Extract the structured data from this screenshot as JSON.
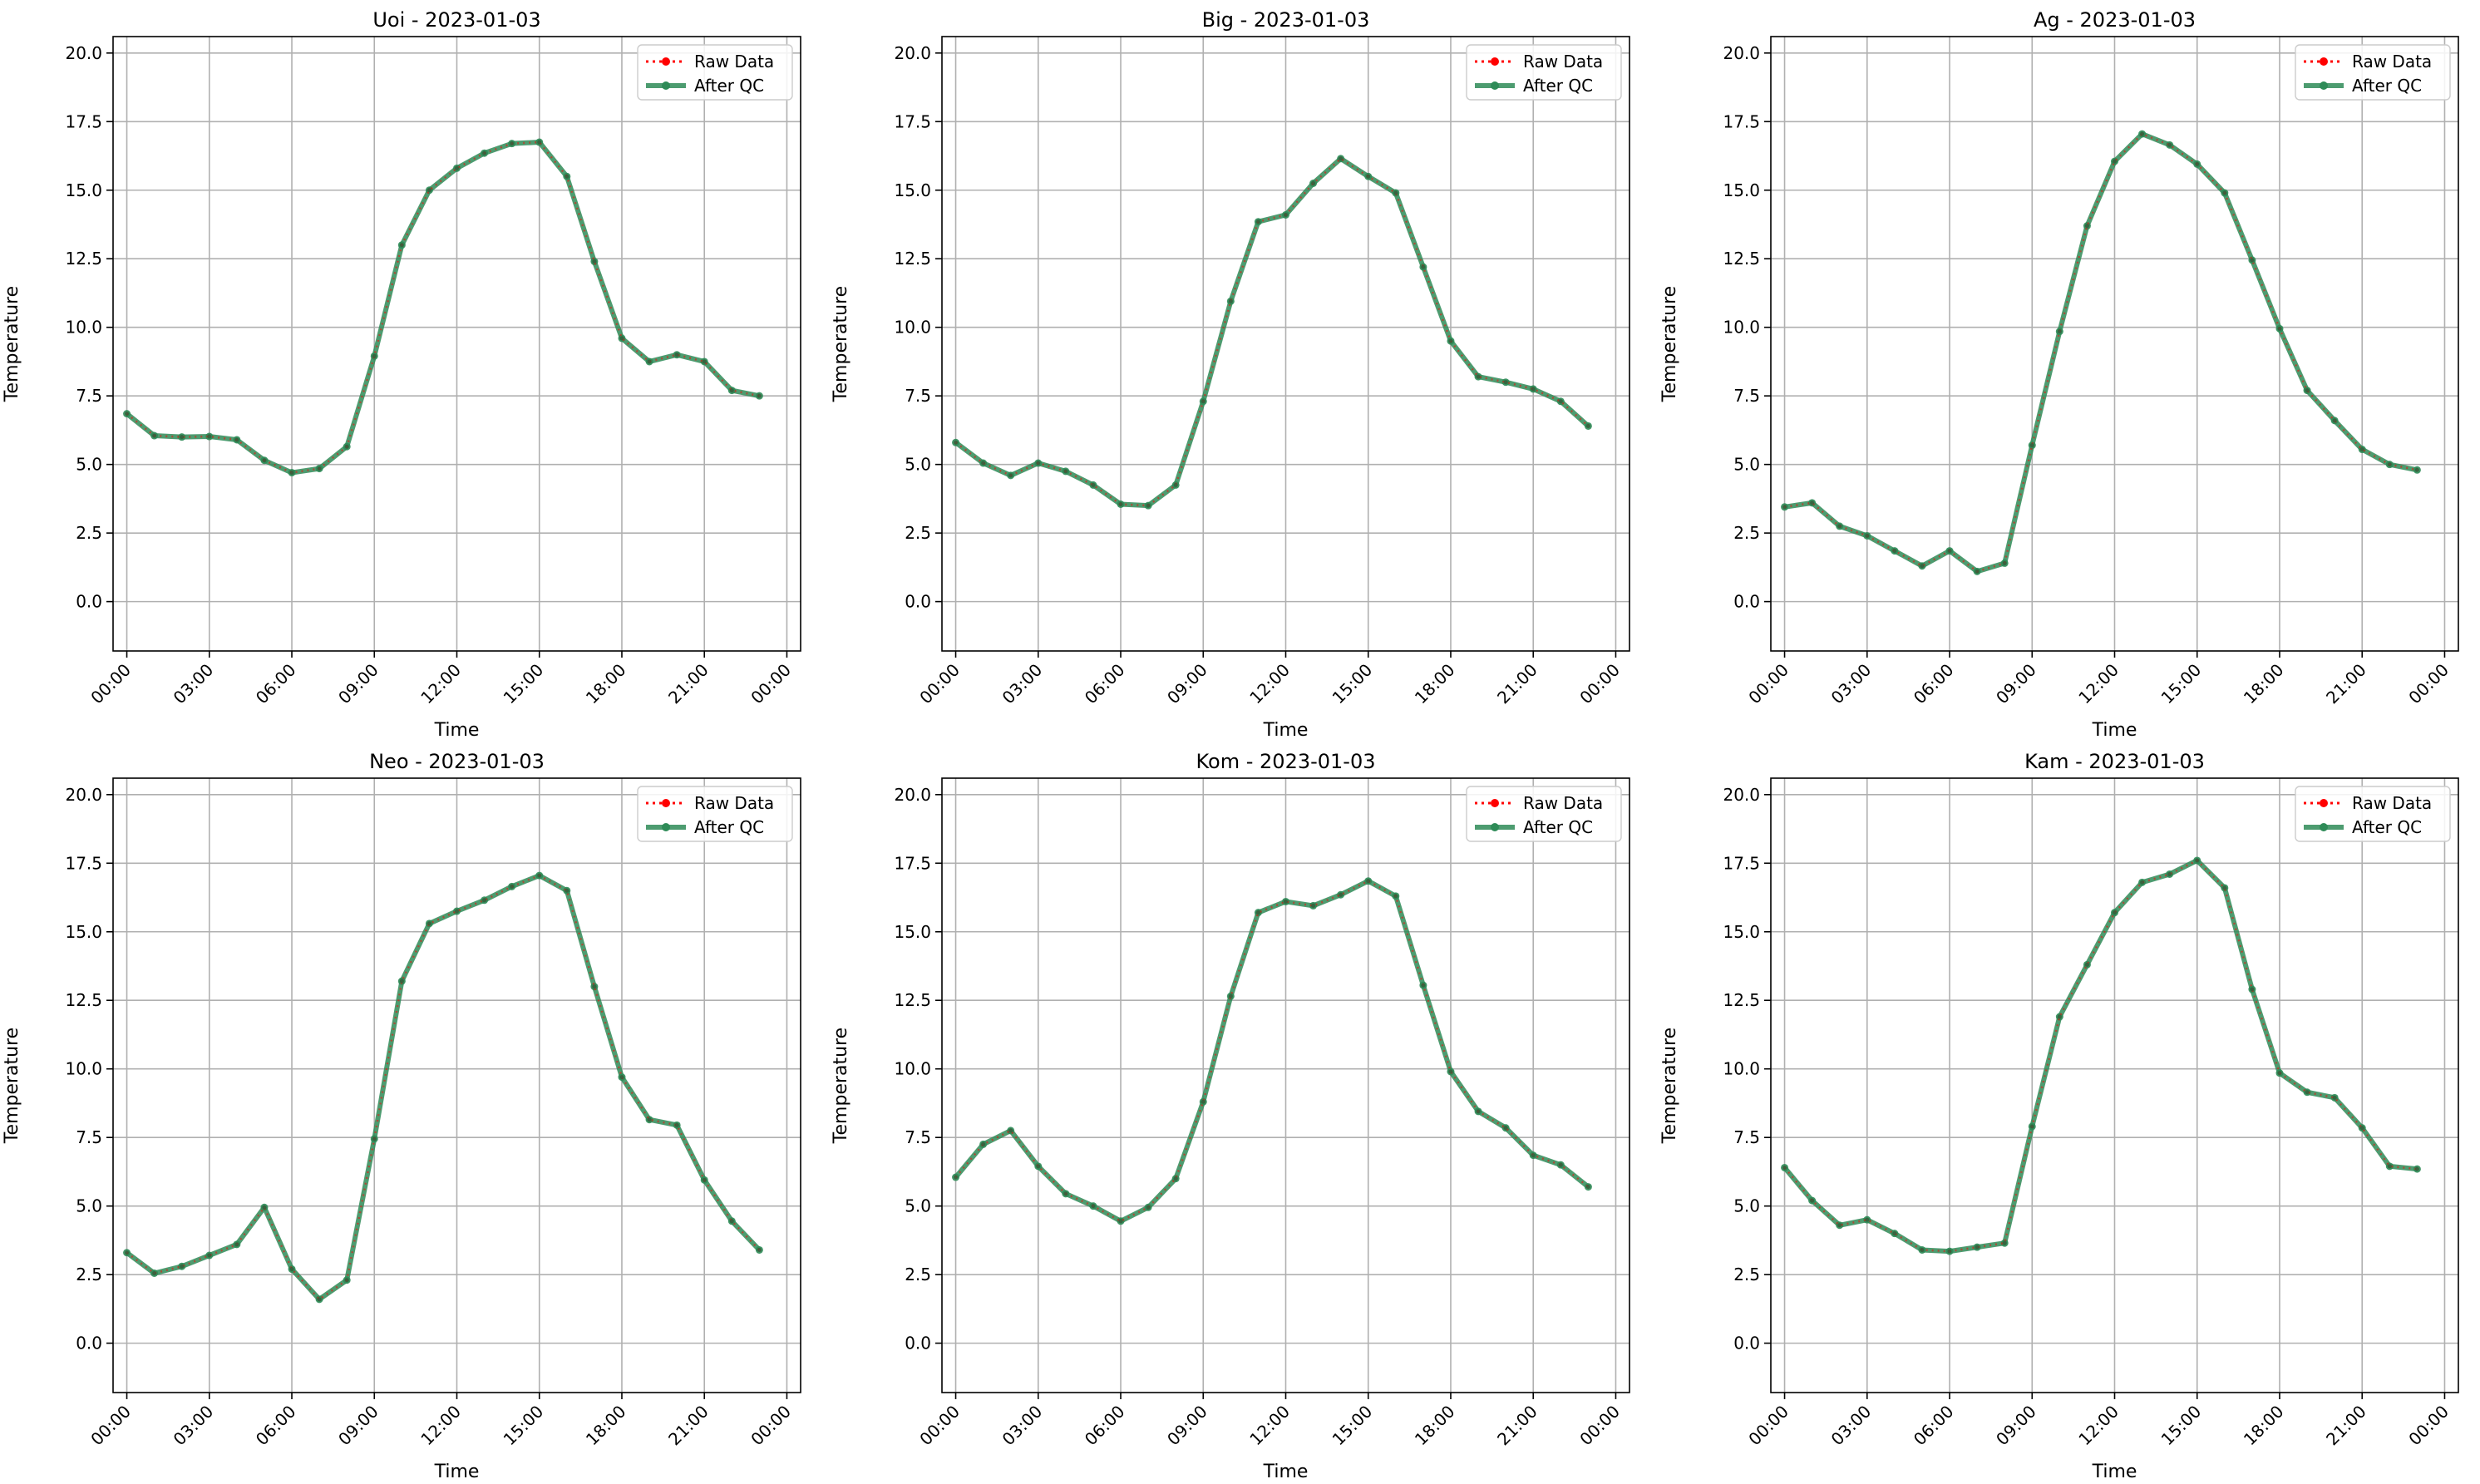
{
  "colors": {
    "raw": "#ff0000",
    "qc": "#2e8b57",
    "grid": "#b0b0b0"
  },
  "legend": {
    "raw_label": "Raw Data",
    "qc_label": "After QC",
    "position": "top-right"
  },
  "chart_data": [
    {
      "type": "line",
      "title": "Uoi - 2023-01-03",
      "xlabel": "Time",
      "ylabel": "Temperature",
      "xticks": [
        "00:00",
        "03:00",
        "06:00",
        "09:00",
        "12:00",
        "15:00",
        "18:00",
        "21:00",
        "00:00"
      ],
      "yticks": [
        "0.0",
        "2.5",
        "5.0",
        "7.5",
        "10.0",
        "12.5",
        "15.0",
        "17.5",
        "20.0"
      ],
      "ylim": [
        -1.8,
        20.6
      ],
      "xlim": [
        "2023-01-03 00:00",
        "2023-01-04 00:00"
      ],
      "grid": true,
      "x": [
        "00:00",
        "01:00",
        "02:00",
        "03:00",
        "04:00",
        "05:00",
        "06:00",
        "07:00",
        "08:00",
        "09:00",
        "10:00",
        "11:00",
        "12:00",
        "13:00",
        "14:00",
        "15:00",
        "16:00",
        "17:00",
        "18:00",
        "19:00",
        "20:00",
        "21:00",
        "22:00",
        "23:00"
      ],
      "series": [
        {
          "name": "Raw Data",
          "values": [
            6.85,
            6.05,
            6.0,
            6.02,
            5.9,
            5.15,
            4.7,
            4.85,
            5.65,
            8.95,
            13.0,
            15.0,
            15.8,
            16.35,
            16.7,
            16.75,
            15.5,
            12.4,
            9.6,
            8.75,
            9.0,
            8.75,
            7.7,
            7.5
          ]
        },
        {
          "name": "After QC",
          "values": [
            6.85,
            6.05,
            6.0,
            6.02,
            5.9,
            5.15,
            4.7,
            4.85,
            5.65,
            8.95,
            13.0,
            15.0,
            15.8,
            16.35,
            16.7,
            16.75,
            15.5,
            12.4,
            9.6,
            8.75,
            9.0,
            8.75,
            7.7,
            7.5
          ]
        }
      ]
    },
    {
      "type": "line",
      "title": "Big - 2023-01-03",
      "xlabel": "Time",
      "ylabel": "Temperature",
      "xticks": [
        "00:00",
        "03:00",
        "06:00",
        "09:00",
        "12:00",
        "15:00",
        "18:00",
        "21:00",
        "00:00"
      ],
      "yticks": [
        "0.0",
        "2.5",
        "5.0",
        "7.5",
        "10.0",
        "12.5",
        "15.0",
        "17.5",
        "20.0"
      ],
      "ylim": [
        -1.8,
        20.6
      ],
      "xlim": [
        "2023-01-03 00:00",
        "2023-01-04 00:00"
      ],
      "grid": true,
      "x": [
        "00:00",
        "01:00",
        "02:00",
        "03:00",
        "04:00",
        "05:00",
        "06:00",
        "07:00",
        "08:00",
        "09:00",
        "10:00",
        "11:00",
        "12:00",
        "13:00",
        "14:00",
        "15:00",
        "16:00",
        "17:00",
        "18:00",
        "19:00",
        "20:00",
        "21:00",
        "22:00",
        "23:00"
      ],
      "series": [
        {
          "name": "Raw Data",
          "values": [
            5.8,
            5.05,
            4.6,
            5.05,
            4.75,
            4.25,
            3.55,
            3.5,
            4.25,
            7.3,
            10.95,
            13.85,
            14.1,
            15.25,
            16.15,
            15.5,
            14.9,
            12.2,
            9.5,
            8.2,
            8.0,
            7.75,
            7.3,
            6.4
          ]
        },
        {
          "name": "After QC",
          "values": [
            5.8,
            5.05,
            4.6,
            5.05,
            4.75,
            4.25,
            3.55,
            3.5,
            4.25,
            7.3,
            10.95,
            13.85,
            14.1,
            15.25,
            16.15,
            15.5,
            14.9,
            12.2,
            9.5,
            8.2,
            8.0,
            7.75,
            7.3,
            6.4
          ]
        }
      ]
    },
    {
      "type": "line",
      "title": "Ag - 2023-01-03",
      "xlabel": "Time",
      "ylabel": "Temperature",
      "xticks": [
        "00:00",
        "03:00",
        "06:00",
        "09:00",
        "12:00",
        "15:00",
        "18:00",
        "21:00",
        "00:00"
      ],
      "yticks": [
        "0.0",
        "2.5",
        "5.0",
        "7.5",
        "10.0",
        "12.5",
        "15.0",
        "17.5",
        "20.0"
      ],
      "ylim": [
        -1.8,
        20.6
      ],
      "xlim": [
        "2023-01-03 00:00",
        "2023-01-04 00:00"
      ],
      "grid": true,
      "x": [
        "00:00",
        "01:00",
        "02:00",
        "03:00",
        "04:00",
        "05:00",
        "06:00",
        "07:00",
        "08:00",
        "09:00",
        "10:00",
        "11:00",
        "12:00",
        "13:00",
        "14:00",
        "15:00",
        "16:00",
        "17:00",
        "18:00",
        "19:00",
        "20:00",
        "21:00",
        "22:00",
        "23:00"
      ],
      "series": [
        {
          "name": "Raw Data",
          "values": [
            3.45,
            3.6,
            2.75,
            2.4,
            1.85,
            1.3,
            1.85,
            1.1,
            1.4,
            5.7,
            9.85,
            13.7,
            16.05,
            17.05,
            16.65,
            15.95,
            14.9,
            12.45,
            9.95,
            7.7,
            6.6,
            5.55,
            5.0,
            4.8
          ]
        },
        {
          "name": "After QC",
          "values": [
            3.45,
            3.6,
            2.75,
            2.4,
            1.85,
            1.3,
            1.85,
            1.1,
            1.4,
            5.7,
            9.85,
            13.7,
            16.05,
            17.05,
            16.65,
            15.95,
            14.9,
            12.45,
            9.95,
            7.7,
            6.6,
            5.55,
            5.0,
            4.8
          ]
        }
      ]
    },
    {
      "type": "line",
      "title": "Neo - 2023-01-03",
      "xlabel": "Time",
      "ylabel": "Temperature",
      "xticks": [
        "00:00",
        "03:00",
        "06:00",
        "09:00",
        "12:00",
        "15:00",
        "18:00",
        "21:00",
        "00:00"
      ],
      "yticks": [
        "0.0",
        "2.5",
        "5.0",
        "7.5",
        "10.0",
        "12.5",
        "15.0",
        "17.5",
        "20.0"
      ],
      "ylim": [
        -1.8,
        20.6
      ],
      "xlim": [
        "2023-01-03 00:00",
        "2023-01-04 00:00"
      ],
      "grid": true,
      "x": [
        "00:00",
        "01:00",
        "02:00",
        "03:00",
        "04:00",
        "05:00",
        "06:00",
        "07:00",
        "08:00",
        "09:00",
        "10:00",
        "11:00",
        "12:00",
        "13:00",
        "14:00",
        "15:00",
        "16:00",
        "17:00",
        "18:00",
        "19:00",
        "20:00",
        "21:00",
        "22:00",
        "23:00"
      ],
      "series": [
        {
          "name": "Raw Data",
          "values": [
            3.3,
            2.55,
            2.8,
            3.2,
            3.6,
            4.95,
            2.7,
            1.6,
            2.3,
            7.45,
            13.2,
            15.3,
            15.75,
            16.15,
            16.65,
            17.05,
            16.5,
            13.0,
            9.7,
            8.15,
            7.95,
            5.95,
            4.45,
            3.4
          ]
        },
        {
          "name": "After QC",
          "values": [
            3.3,
            2.55,
            2.8,
            3.2,
            3.6,
            4.95,
            2.7,
            1.6,
            2.3,
            7.45,
            13.2,
            15.3,
            15.75,
            16.15,
            16.65,
            17.05,
            16.5,
            13.0,
            9.7,
            8.15,
            7.95,
            5.95,
            4.45,
            3.4
          ]
        }
      ]
    },
    {
      "type": "line",
      "title": "Kom - 2023-01-03",
      "xlabel": "Time",
      "ylabel": "Temperature",
      "xticks": [
        "00:00",
        "03:00",
        "06:00",
        "09:00",
        "12:00",
        "15:00",
        "18:00",
        "21:00",
        "00:00"
      ],
      "yticks": [
        "0.0",
        "2.5",
        "5.0",
        "7.5",
        "10.0",
        "12.5",
        "15.0",
        "17.5",
        "20.0"
      ],
      "ylim": [
        -1.8,
        20.6
      ],
      "xlim": [
        "2023-01-03 00:00",
        "2023-01-04 00:00"
      ],
      "grid": true,
      "x": [
        "00:00",
        "01:00",
        "02:00",
        "03:00",
        "04:00",
        "05:00",
        "06:00",
        "07:00",
        "08:00",
        "09:00",
        "10:00",
        "11:00",
        "12:00",
        "13:00",
        "14:00",
        "15:00",
        "16:00",
        "17:00",
        "18:00",
        "19:00",
        "20:00",
        "21:00",
        "22:00",
        "23:00"
      ],
      "series": [
        {
          "name": "Raw Data",
          "values": [
            6.05,
            7.25,
            7.75,
            6.45,
            5.45,
            5.0,
            4.45,
            4.95,
            6.0,
            8.8,
            12.65,
            15.7,
            16.1,
            15.95,
            16.35,
            16.85,
            16.3,
            13.05,
            9.9,
            8.45,
            7.85,
            6.85,
            6.5,
            5.7
          ]
        },
        {
          "name": "After QC",
          "values": [
            6.05,
            7.25,
            7.75,
            6.45,
            5.45,
            5.0,
            4.45,
            4.95,
            6.0,
            8.8,
            12.65,
            15.7,
            16.1,
            15.95,
            16.35,
            16.85,
            16.3,
            13.05,
            9.9,
            8.45,
            7.85,
            6.85,
            6.5,
            5.7
          ]
        }
      ]
    },
    {
      "type": "line",
      "title": "Kam - 2023-01-03",
      "xlabel": "Time",
      "ylabel": "Temperature",
      "xticks": [
        "00:00",
        "03:00",
        "06:00",
        "09:00",
        "12:00",
        "15:00",
        "18:00",
        "21:00",
        "00:00"
      ],
      "yticks": [
        "0.0",
        "2.5",
        "5.0",
        "7.5",
        "10.0",
        "12.5",
        "15.0",
        "17.5",
        "20.0"
      ],
      "ylim": [
        -1.8,
        20.6
      ],
      "xlim": [
        "2023-01-03 00:00",
        "2023-01-04 00:00"
      ],
      "grid": true,
      "x": [
        "00:00",
        "01:00",
        "02:00",
        "03:00",
        "04:00",
        "05:00",
        "06:00",
        "07:00",
        "08:00",
        "09:00",
        "10:00",
        "11:00",
        "12:00",
        "13:00",
        "14:00",
        "15:00",
        "16:00",
        "17:00",
        "18:00",
        "19:00",
        "20:00",
        "21:00",
        "22:00",
        "23:00"
      ],
      "series": [
        {
          "name": "Raw Data",
          "values": [
            6.4,
            5.2,
            4.3,
            4.5,
            4.0,
            3.4,
            3.35,
            3.5,
            3.65,
            7.9,
            11.9,
            13.8,
            15.7,
            16.8,
            17.1,
            17.6,
            16.6,
            12.9,
            9.85,
            9.15,
            8.95,
            7.85,
            6.45,
            6.35
          ]
        },
        {
          "name": "After QC",
          "values": [
            6.4,
            5.2,
            4.3,
            4.5,
            4.0,
            3.4,
            3.35,
            3.5,
            3.65,
            7.9,
            11.9,
            13.8,
            15.7,
            16.8,
            17.1,
            17.6,
            16.6,
            12.9,
            9.85,
            9.15,
            8.95,
            7.85,
            6.45,
            6.35
          ]
        }
      ]
    }
  ]
}
